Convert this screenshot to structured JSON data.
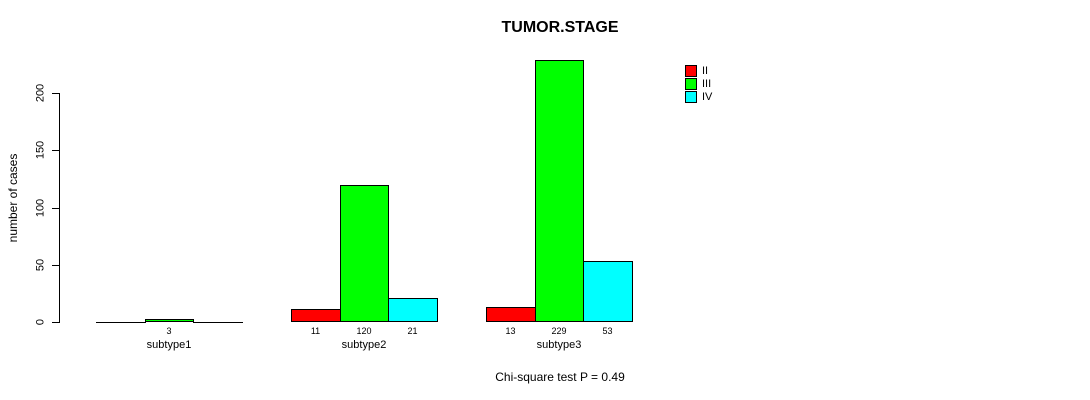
{
  "chart_data": {
    "type": "bar",
    "title": "TUMOR.STAGE",
    "xlabel": "",
    "ylabel": "number of cases",
    "categories": [
      "subtype1",
      "subtype2",
      "subtype3"
    ],
    "series": [
      {
        "name": "II",
        "color": "#ff0000",
        "values": [
          0,
          11,
          13
        ]
      },
      {
        "name": "III",
        "color": "#00ff00",
        "values": [
          3,
          120,
          229
        ]
      },
      {
        "name": "IV",
        "color": "#00ffff",
        "values": [
          0,
          21,
          53
        ]
      }
    ],
    "bar_value_labels": [
      [
        "",
        "11",
        "13"
      ],
      [
        "3",
        "120",
        "229"
      ],
      [
        "",
        "21",
        "53"
      ]
    ],
    "yticks": [
      0,
      50,
      100,
      150,
      200
    ],
    "ylim": [
      0,
      230
    ],
    "grid": false,
    "legend_position": "top-right",
    "annotation": "Chi-square test P = 0.49",
    "colors": {
      "background": "#ffffff",
      "axis": "#000000",
      "text": "#000000"
    }
  }
}
